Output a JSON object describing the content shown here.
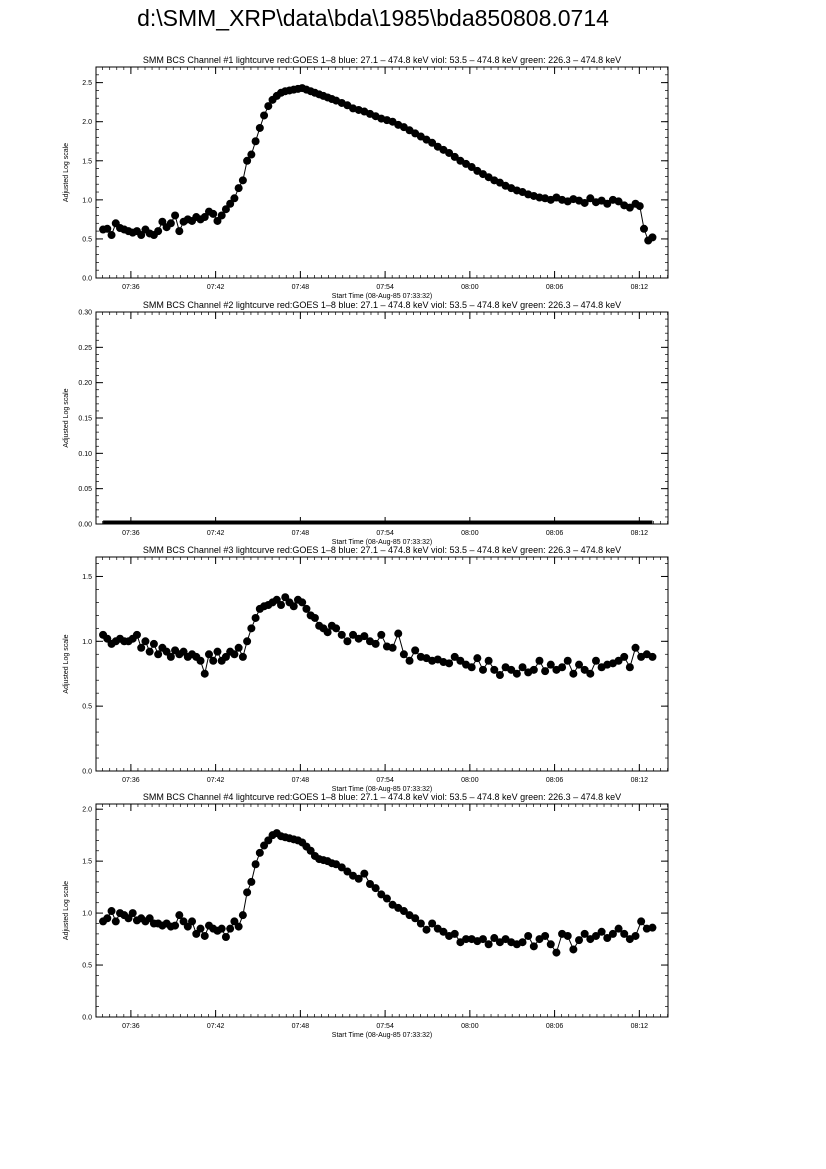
{
  "page_title": "d:\\SMM_XRP\\data\\bda\\1985\\bda850808.0714",
  "chart_data": [
    {
      "type": "scatter",
      "title": "SMM BCS Channel #1 lightcurve  red:GOES 1–8  blue: 27.1 – 474.8 keV  viol: 53.5 – 474.8 keV  green: 226.3 – 474.8 keV",
      "xlabel": "Start Time (08-Aug-85 07:33:32)",
      "ylabel": "Adjusted Log scale",
      "x_ticks": [
        {
          "value": 2.47,
          "label": "07:36"
        },
        {
          "value": 8.47,
          "label": "07:42"
        },
        {
          "value": 14.47,
          "label": "07:48"
        },
        {
          "value": 20.47,
          "label": "07:54"
        },
        {
          "value": 26.47,
          "label": "08:00"
        },
        {
          "value": 32.47,
          "label": "08:06"
        },
        {
          "value": 38.47,
          "label": "08:12"
        }
      ],
      "xlim": [
        0,
        40.5
      ],
      "ylim": [
        0,
        2.7
      ],
      "y_ticks": [
        {
          "value": 0,
          "label": "0.0"
        },
        {
          "value": 0.5,
          "label": "0.5"
        },
        {
          "value": 1.0,
          "label": "1.0"
        },
        {
          "value": 1.5,
          "label": "1.5"
        },
        {
          "value": 2.0,
          "label": "2.0"
        },
        {
          "value": 2.5,
          "label": "2.5"
        }
      ],
      "x_unit": "minutes since 07:33:32",
      "x": [
        0.5,
        0.8,
        1.1,
        1.4,
        1.7,
        2.0,
        2.3,
        2.6,
        2.9,
        3.2,
        3.5,
        3.8,
        4.1,
        4.4,
        4.7,
        5.0,
        5.3,
        5.6,
        5.9,
        6.2,
        6.5,
        6.8,
        7.1,
        7.4,
        7.7,
        8.0,
        8.3,
        8.6,
        8.9,
        9.2,
        9.5,
        9.8,
        10.1,
        10.4,
        10.7,
        11.0,
        11.3,
        11.6,
        11.9,
        12.2,
        12.5,
        12.8,
        13.1,
        13.4,
        13.7,
        14.0,
        14.3,
        14.6,
        14.9,
        15.2,
        15.5,
        15.8,
        16.1,
        16.4,
        16.7,
        17.0,
        17.4,
        17.8,
        18.2,
        18.6,
        19.0,
        19.4,
        19.8,
        20.2,
        20.6,
        21.0,
        21.4,
        21.8,
        22.2,
        22.6,
        23.0,
        23.4,
        23.8,
        24.2,
        24.6,
        25.0,
        25.4,
        25.8,
        26.2,
        26.6,
        27.0,
        27.4,
        27.8,
        28.2,
        28.6,
        29.0,
        29.4,
        29.8,
        30.2,
        30.6,
        31.0,
        31.4,
        31.8,
        32.2,
        32.6,
        33.0,
        33.4,
        33.8,
        34.2,
        34.6,
        35.0,
        35.4,
        35.8,
        36.2,
        36.6,
        37.0,
        37.4,
        37.8,
        38.2,
        38.5,
        38.8,
        39.1,
        39.4
      ],
      "y": [
        0.62,
        0.63,
        0.55,
        0.7,
        0.64,
        0.62,
        0.6,
        0.58,
        0.6,
        0.55,
        0.62,
        0.57,
        0.55,
        0.6,
        0.72,
        0.65,
        0.7,
        0.8,
        0.6,
        0.72,
        0.75,
        0.73,
        0.78,
        0.75,
        0.78,
        0.85,
        0.82,
        0.73,
        0.8,
        0.88,
        0.95,
        1.02,
        1.15,
        1.25,
        1.5,
        1.58,
        1.75,
        1.92,
        2.08,
        2.2,
        2.28,
        2.33,
        2.37,
        2.39,
        2.4,
        2.41,
        2.42,
        2.43,
        2.41,
        2.39,
        2.37,
        2.35,
        2.33,
        2.31,
        2.29,
        2.27,
        2.24,
        2.21,
        2.17,
        2.15,
        2.13,
        2.1,
        2.07,
        2.04,
        2.02,
        2.0,
        1.96,
        1.93,
        1.89,
        1.85,
        1.81,
        1.77,
        1.73,
        1.68,
        1.64,
        1.6,
        1.55,
        1.5,
        1.46,
        1.42,
        1.37,
        1.33,
        1.29,
        1.25,
        1.22,
        1.18,
        1.15,
        1.12,
        1.1,
        1.07,
        1.05,
        1.03,
        1.02,
        1.0,
        1.03,
        1.0,
        0.98,
        1.01,
        0.99,
        0.96,
        1.02,
        0.97,
        0.99,
        0.95,
        1.0,
        0.98,
        0.93,
        0.9,
        0.95,
        0.92,
        0.63,
        0.48,
        0.52
      ]
    },
    {
      "type": "scatter",
      "title": "SMM BCS Channel #2 lightcurve  red:GOES 1–8  blue: 27.1 – 474.8 keV  viol: 53.5 – 474.8 keV  green: 226.3 – 474.8 keV",
      "xlabel": "Start Time (08-Aug-85 07:33:32)",
      "ylabel": "Adjusted Log scale",
      "x_ticks": [
        {
          "value": 2.47,
          "label": "07:36"
        },
        {
          "value": 8.47,
          "label": "07:42"
        },
        {
          "value": 14.47,
          "label": "07:48"
        },
        {
          "value": 20.47,
          "label": "07:54"
        },
        {
          "value": 26.47,
          "label": "08:00"
        },
        {
          "value": 32.47,
          "label": "08:06"
        },
        {
          "value": 38.47,
          "label": "08:12"
        }
      ],
      "xlim": [
        0,
        40.5
      ],
      "ylim": [
        0,
        0.3
      ],
      "y_ticks": [
        {
          "value": 0,
          "label": "0.00"
        },
        {
          "value": 0.05,
          "label": "0.05"
        },
        {
          "value": 0.1,
          "label": "0.10"
        },
        {
          "value": 0.15,
          "label": "0.15"
        },
        {
          "value": 0.2,
          "label": "0.20"
        },
        {
          "value": 0.25,
          "label": "0.25"
        },
        {
          "value": 0.3,
          "label": "0.30"
        }
      ],
      "x_unit": "minutes since 07:33:32",
      "x": [
        0.5,
        39.4
      ],
      "y": [
        0,
        0
      ],
      "flat_line": true
    },
    {
      "type": "scatter",
      "title": "SMM BCS Channel #3 lightcurve  red:GOES 1–8  blue: 27.1 – 474.8 keV  viol: 53.5 – 474.8 keV  green: 226.3 – 474.8 keV",
      "xlabel": "Start Time (08-Aug-85 07:33:32)",
      "ylabel": "Adjusted Log scale",
      "x_ticks": [
        {
          "value": 2.47,
          "label": "07:36"
        },
        {
          "value": 8.47,
          "label": "07:42"
        },
        {
          "value": 14.47,
          "label": "07:48"
        },
        {
          "value": 20.47,
          "label": "07:54"
        },
        {
          "value": 26.47,
          "label": "08:00"
        },
        {
          "value": 32.47,
          "label": "08:06"
        },
        {
          "value": 38.47,
          "label": "08:12"
        }
      ],
      "xlim": [
        0,
        40.5
      ],
      "ylim": [
        0,
        1.65
      ],
      "y_ticks": [
        {
          "value": 0,
          "label": "0.0"
        },
        {
          "value": 0.5,
          "label": "0.5"
        },
        {
          "value": 1.0,
          "label": "1.0"
        },
        {
          "value": 1.5,
          "label": "1.5"
        }
      ],
      "x_unit": "minutes since 07:33:32",
      "x": [
        0.5,
        0.8,
        1.1,
        1.4,
        1.7,
        2.0,
        2.3,
        2.6,
        2.9,
        3.2,
        3.5,
        3.8,
        4.1,
        4.4,
        4.7,
        5.0,
        5.3,
        5.6,
        5.9,
        6.2,
        6.5,
        6.8,
        7.1,
        7.4,
        7.7,
        8.0,
        8.3,
        8.6,
        8.9,
        9.2,
        9.5,
        9.8,
        10.1,
        10.4,
        10.7,
        11.0,
        11.3,
        11.6,
        11.9,
        12.2,
        12.5,
        12.8,
        13.1,
        13.4,
        13.7,
        14.0,
        14.3,
        14.6,
        14.9,
        15.2,
        15.5,
        15.8,
        16.1,
        16.4,
        16.7,
        17.0,
        17.4,
        17.8,
        18.2,
        18.6,
        19.0,
        19.4,
        19.8,
        20.2,
        20.6,
        21.0,
        21.4,
        21.8,
        22.2,
        22.6,
        23.0,
        23.4,
        23.8,
        24.2,
        24.6,
        25.0,
        25.4,
        25.8,
        26.2,
        26.6,
        27.0,
        27.4,
        27.8,
        28.2,
        28.6,
        29.0,
        29.4,
        29.8,
        30.2,
        30.6,
        31.0,
        31.4,
        31.8,
        32.2,
        32.6,
        33.0,
        33.4,
        33.8,
        34.2,
        34.6,
        35.0,
        35.4,
        35.8,
        36.2,
        36.6,
        37.0,
        37.4,
        37.8,
        38.2,
        38.6,
        39.0,
        39.4
      ],
      "y": [
        1.05,
        1.02,
        0.98,
        1.0,
        1.02,
        1.0,
        1.0,
        1.02,
        1.05,
        0.95,
        1.0,
        0.92,
        0.98,
        0.9,
        0.95,
        0.92,
        0.88,
        0.93,
        0.9,
        0.92,
        0.88,
        0.9,
        0.88,
        0.85,
        0.75,
        0.9,
        0.85,
        0.92,
        0.85,
        0.88,
        0.92,
        0.9,
        0.95,
        0.88,
        1.0,
        1.1,
        1.18,
        1.25,
        1.27,
        1.28,
        1.3,
        1.32,
        1.28,
        1.34,
        1.3,
        1.27,
        1.32,
        1.3,
        1.25,
        1.2,
        1.18,
        1.12,
        1.1,
        1.07,
        1.12,
        1.1,
        1.05,
        1.0,
        1.05,
        1.02,
        1.04,
        1.0,
        0.98,
        1.05,
        0.96,
        0.95,
        1.06,
        0.9,
        0.85,
        0.93,
        0.88,
        0.87,
        0.85,
        0.86,
        0.84,
        0.83,
        0.88,
        0.85,
        0.82,
        0.8,
        0.87,
        0.78,
        0.85,
        0.78,
        0.74,
        0.8,
        0.78,
        0.75,
        0.8,
        0.76,
        0.78,
        0.85,
        0.77,
        0.82,
        0.78,
        0.8,
        0.85,
        0.75,
        0.82,
        0.78,
        0.75,
        0.85,
        0.8,
        0.82,
        0.83,
        0.85,
        0.88,
        0.8,
        0.95,
        0.88,
        0.9,
        0.88
      ]
    },
    {
      "type": "scatter",
      "title": "SMM BCS Channel #4 lightcurve  red:GOES 1–8  blue: 27.1 – 474.8 keV  viol: 53.5 – 474.8 keV  green: 226.3 – 474.8 keV",
      "xlabel": "Start Time (08-Aug-85 07:33:32)",
      "ylabel": "Adjusted Log scale",
      "x_ticks": [
        {
          "value": 2.47,
          "label": "07:36"
        },
        {
          "value": 8.47,
          "label": "07:42"
        },
        {
          "value": 14.47,
          "label": "07:48"
        },
        {
          "value": 20.47,
          "label": "07:54"
        },
        {
          "value": 26.47,
          "label": "08:00"
        },
        {
          "value": 32.47,
          "label": "08:06"
        },
        {
          "value": 38.47,
          "label": "08:12"
        }
      ],
      "xlim": [
        0,
        40.5
      ],
      "ylim": [
        0,
        2.05
      ],
      "y_ticks": [
        {
          "value": 0,
          "label": "0.0"
        },
        {
          "value": 0.5,
          "label": "0.5"
        },
        {
          "value": 1.0,
          "label": "1.0"
        },
        {
          "value": 1.5,
          "label": "1.5"
        },
        {
          "value": 2.0,
          "label": "2.0"
        }
      ],
      "x_unit": "minutes since 07:33:32",
      "x": [
        0.5,
        0.8,
        1.1,
        1.4,
        1.7,
        2.0,
        2.3,
        2.6,
        2.9,
        3.2,
        3.5,
        3.8,
        4.1,
        4.4,
        4.7,
        5.0,
        5.3,
        5.6,
        5.9,
        6.2,
        6.5,
        6.8,
        7.1,
        7.4,
        7.7,
        8.0,
        8.3,
        8.6,
        8.9,
        9.2,
        9.5,
        9.8,
        10.1,
        10.4,
        10.7,
        11.0,
        11.3,
        11.6,
        11.9,
        12.2,
        12.5,
        12.8,
        13.1,
        13.4,
        13.7,
        14.0,
        14.3,
        14.6,
        14.9,
        15.2,
        15.5,
        15.8,
        16.1,
        16.4,
        16.7,
        17.0,
        17.4,
        17.8,
        18.2,
        18.6,
        19.0,
        19.4,
        19.8,
        20.2,
        20.6,
        21.0,
        21.4,
        21.8,
        22.2,
        22.6,
        23.0,
        23.4,
        23.8,
        24.2,
        24.6,
        25.0,
        25.4,
        25.8,
        26.2,
        26.6,
        27.0,
        27.4,
        27.8,
        28.2,
        28.6,
        29.0,
        29.4,
        29.8,
        30.2,
        30.6,
        31.0,
        31.4,
        31.8,
        32.2,
        32.6,
        33.0,
        33.4,
        33.8,
        34.2,
        34.6,
        35.0,
        35.4,
        35.8,
        36.2,
        36.6,
        37.0,
        37.4,
        37.8,
        38.2,
        38.6,
        39.0,
        39.4
      ],
      "y": [
        0.92,
        0.95,
        1.02,
        0.92,
        1.0,
        0.98,
        0.95,
        1.0,
        0.93,
        0.95,
        0.92,
        0.95,
        0.9,
        0.9,
        0.88,
        0.9,
        0.87,
        0.88,
        0.98,
        0.92,
        0.87,
        0.92,
        0.8,
        0.85,
        0.78,
        0.88,
        0.85,
        0.83,
        0.85,
        0.77,
        0.85,
        0.92,
        0.87,
        0.98,
        1.2,
        1.3,
        1.47,
        1.58,
        1.65,
        1.7,
        1.75,
        1.77,
        1.74,
        1.73,
        1.72,
        1.71,
        1.7,
        1.68,
        1.64,
        1.6,
        1.55,
        1.52,
        1.51,
        1.5,
        1.48,
        1.47,
        1.44,
        1.4,
        1.36,
        1.33,
        1.38,
        1.28,
        1.24,
        1.18,
        1.14,
        1.08,
        1.05,
        1.02,
        0.98,
        0.95,
        0.9,
        0.84,
        0.9,
        0.85,
        0.82,
        0.78,
        0.8,
        0.72,
        0.75,
        0.75,
        0.73,
        0.75,
        0.7,
        0.76,
        0.72,
        0.75,
        0.72,
        0.7,
        0.72,
        0.78,
        0.68,
        0.75,
        0.78,
        0.7,
        0.62,
        0.8,
        0.78,
        0.65,
        0.74,
        0.8,
        0.75,
        0.78,
        0.82,
        0.76,
        0.8,
        0.85,
        0.8,
        0.75,
        0.78,
        0.92,
        0.85,
        0.86
      ]
    }
  ]
}
